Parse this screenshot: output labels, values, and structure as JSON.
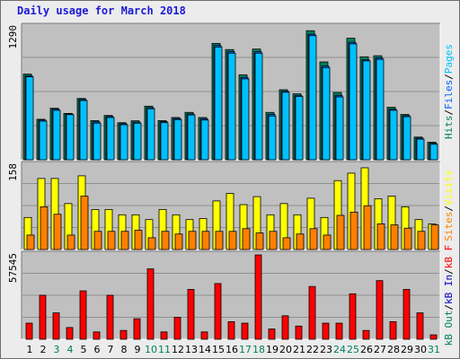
{
  "title": "Daily usage for March 2018",
  "colors": {
    "pages": "#00c0ff",
    "files": "#0060ff",
    "hits": "#00805c",
    "visits": "#ffff00",
    "sites": "#ff8000",
    "kb_out": "#00805c",
    "kb_in": "#0000c0",
    "kb_f": "#ff0000",
    "weekday": "#000000",
    "weekend": "#00805c"
  },
  "chart_data": [
    {
      "type": "bar",
      "panel": "top",
      "scale_label": "1290",
      "ylim": [
        0,
        1290
      ],
      "legend": [
        {
          "name": "Pages",
          "color": "#00c0ff"
        },
        {
          "name": "Files",
          "color": "#0060ff"
        },
        {
          "name": "Hits",
          "color": "#00805c"
        }
      ],
      "categories": [
        "1",
        "2",
        "3",
        "4",
        "5",
        "6",
        "7",
        "8",
        "9",
        "10",
        "11",
        "12",
        "13",
        "14",
        "15",
        "16",
        "17",
        "18",
        "19",
        "20",
        "21",
        "22",
        "23",
        "24",
        "25",
        "26",
        "27",
        "28",
        "29",
        "30",
        "31"
      ],
      "series": [
        {
          "name": "Hits",
          "values": [
            832,
            393,
            500,
            450,
            595,
            380,
            430,
            360,
            378,
            520,
            380,
            410,
            460,
            410,
            1130,
            1070,
            825,
            1075,
            460,
            680,
            640,
            1253,
            950,
            653,
            1180,
            1000,
            1010,
            510,
            440,
            220,
            170
          ]
        },
        {
          "name": "Files",
          "values": [
            815,
            385,
            490,
            445,
            585,
            368,
            420,
            350,
            365,
            505,
            370,
            400,
            445,
            398,
            1110,
            1050,
            800,
            1050,
            440,
            665,
            625,
            1220,
            910,
            625,
            1140,
            970,
            990,
            490,
            428,
            210,
            160
          ]
        },
        {
          "name": "Pages",
          "values": [
            805,
            375,
            480,
            438,
            575,
            355,
            410,
            340,
            355,
            495,
            360,
            390,
            435,
            385,
            1095,
            1035,
            785,
            1035,
            425,
            655,
            615,
            1205,
            895,
            610,
            1125,
            960,
            975,
            480,
            418,
            200,
            150
          ]
        }
      ]
    },
    {
      "type": "bar",
      "panel": "middle",
      "scale_label": "158",
      "ylim": [
        0,
        158
      ],
      "legend": [
        {
          "name": "Visits",
          "color": "#ffff00"
        },
        {
          "name": "Sites",
          "color": "#ff8000"
        }
      ],
      "categories": [
        "1",
        "2",
        "3",
        "4",
        "5",
        "6",
        "7",
        "8",
        "9",
        "10",
        "11",
        "12",
        "13",
        "14",
        "15",
        "16",
        "17",
        "18",
        "19",
        "20",
        "21",
        "22",
        "23",
        "24",
        "25",
        "26",
        "27",
        "28",
        "29",
        "30",
        "31"
      ],
      "series": [
        {
          "name": "Visits",
          "values": [
            60,
            133,
            133,
            86,
            138,
            75,
            75,
            65,
            65,
            56,
            75,
            65,
            56,
            58,
            91,
            105,
            84,
            99,
            65,
            86,
            65,
            96,
            60,
            129,
            143,
            153,
            95,
            100,
            80,
            56,
            48
          ]
        },
        {
          "name": "Sites",
          "values": [
            27,
            80,
            66,
            27,
            100,
            34,
            34,
            34,
            36,
            22,
            34,
            29,
            34,
            34,
            34,
            34,
            39,
            31,
            34,
            22,
            29,
            39,
            27,
            64,
            70,
            82,
            48,
            46,
            40,
            34,
            46
          ]
        }
      ]
    },
    {
      "type": "bar",
      "panel": "bottom",
      "scale_label": "57545",
      "ylim": [
        0,
        57545
      ],
      "legend": [
        {
          "name": "kB F",
          "color": "#ff0000"
        },
        {
          "name": "kB In",
          "color": "#0000c0"
        },
        {
          "name": "kB Out",
          "color": "#00805c"
        }
      ],
      "categories": [
        "1",
        "2",
        "3",
        "4",
        "5",
        "6",
        "7",
        "8",
        "9",
        "10",
        "11",
        "12",
        "13",
        "14",
        "15",
        "16",
        "17",
        "18",
        "19",
        "20",
        "21",
        "22",
        "23",
        "24",
        "25",
        "26",
        "27",
        "28",
        "29",
        "30",
        "31"
      ],
      "series": [
        {
          "name": "kB F",
          "values": [
            11000,
            30000,
            18000,
            8000,
            33000,
            5000,
            30000,
            6000,
            14000,
            48000,
            5000,
            15000,
            34000,
            5000,
            38000,
            12000,
            11000,
            57545,
            7000,
            16000,
            9000,
            36000,
            11000,
            11000,
            31000,
            6000,
            40000,
            12000,
            34000,
            18000,
            3000
          ]
        }
      ]
    }
  ],
  "x_labels": [
    {
      "text": "1",
      "weekend": false
    },
    {
      "text": "2",
      "weekend": false
    },
    {
      "text": "3",
      "weekend": true
    },
    {
      "text": "4",
      "weekend": true
    },
    {
      "text": "5",
      "weekend": false
    },
    {
      "text": "6",
      "weekend": false
    },
    {
      "text": "7",
      "weekend": false
    },
    {
      "text": "8",
      "weekend": false
    },
    {
      "text": "9",
      "weekend": false
    },
    {
      "text": "10",
      "weekend": true
    },
    {
      "text": "11",
      "weekend": true
    },
    {
      "text": "12",
      "weekend": false
    },
    {
      "text": "13",
      "weekend": false
    },
    {
      "text": "14",
      "weekend": false
    },
    {
      "text": "15",
      "weekend": false
    },
    {
      "text": "16",
      "weekend": false
    },
    {
      "text": "17",
      "weekend": true
    },
    {
      "text": "18",
      "weekend": true
    },
    {
      "text": "19",
      "weekend": false
    },
    {
      "text": "20",
      "weekend": false
    },
    {
      "text": "21",
      "weekend": false
    },
    {
      "text": "22",
      "weekend": false
    },
    {
      "text": "23",
      "weekend": false
    },
    {
      "text": "24",
      "weekend": true
    },
    {
      "text": "25",
      "weekend": true
    },
    {
      "text": "26",
      "weekend": false
    },
    {
      "text": "27",
      "weekend": false
    },
    {
      "text": "28",
      "weekend": false
    },
    {
      "text": "29",
      "weekend": false
    },
    {
      "text": "30",
      "weekend": false
    },
    {
      "text": "31",
      "weekend": true
    }
  ]
}
